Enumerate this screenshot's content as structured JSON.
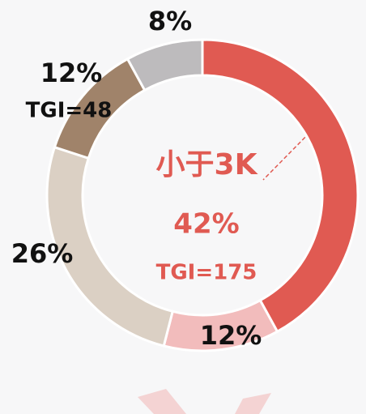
{
  "chart_data": {
    "type": "donut",
    "categories": [
      "小于3K",
      null,
      null,
      null,
      null
    ],
    "values": [
      42,
      12,
      26,
      12,
      8
    ],
    "value_labels": [
      "42%",
      "12%",
      "26%",
      "12%",
      "8%"
    ],
    "tgi_labels": [
      "TGI=175",
      null,
      null,
      "TGI=48",
      null
    ],
    "colors": [
      "#e05a52",
      "#f2bcbc",
      "#dbd0c4",
      "#a0836a",
      "#bdbbbd"
    ]
  }
}
